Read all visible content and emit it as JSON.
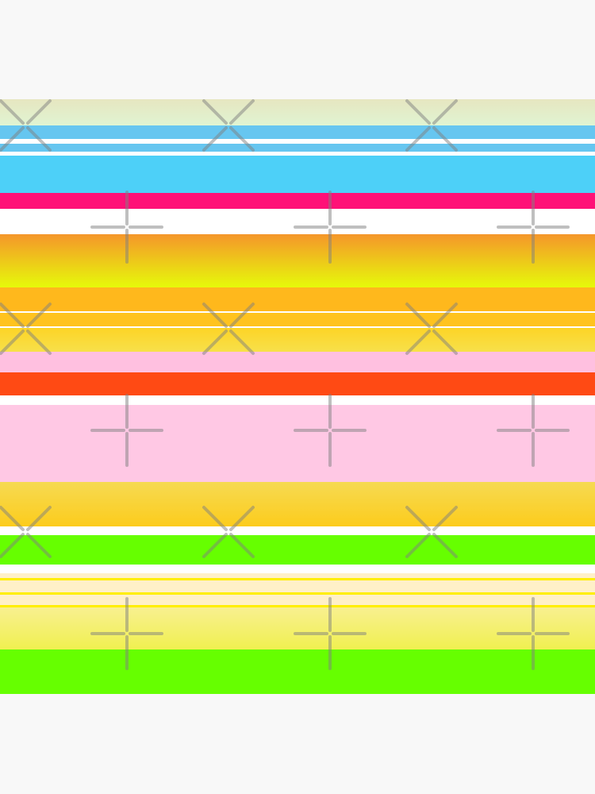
{
  "background": "#f8f8f8",
  "watermark_color": "#808080",
  "watermark_icons": [
    "x-cross-icon",
    "plus-cross-icon"
  ],
  "stripes": [
    {
      "color": "#e6e6c0",
      "color_end": "#e0f4d2"
    },
    {
      "color": "#66c6f0"
    },
    {
      "color": "#ffffff"
    },
    {
      "color": "#66c6f0"
    },
    {
      "color": "#ffffff"
    },
    {
      "color": "#4dd0f8"
    },
    {
      "color": "#ff1177"
    },
    {
      "color": "#ffffff"
    },
    {
      "color": "#f5962a",
      "color_end": "#e6fa0a"
    },
    {
      "color": "#ffb81c"
    },
    {
      "color": "#ffffff"
    },
    {
      "color": "#ffc31e"
    },
    {
      "color": "#ffffff"
    },
    {
      "color": "#fdd426",
      "color_end": "#f7e04a"
    },
    {
      "color": "#ffc0e0"
    },
    {
      "color": "#ff4a14"
    },
    {
      "color": "#ffffff"
    },
    {
      "color": "#ffc8e4"
    },
    {
      "color": "#f6da52",
      "color_end": "#fccc1c"
    },
    {
      "color": "#ffffff"
    },
    {
      "color": "#66ff00"
    },
    {
      "color": "#ffffff"
    },
    {
      "color": "#fff0c8"
    },
    {
      "color": "#ffee00"
    },
    {
      "color": "#fff0c8"
    },
    {
      "color": "#ffee00"
    },
    {
      "color": "#fff0c8"
    },
    {
      "color": "#ffee00"
    },
    {
      "color": "#f8f090",
      "color_end": "#f0f050"
    },
    {
      "color": "#66ff00"
    }
  ]
}
